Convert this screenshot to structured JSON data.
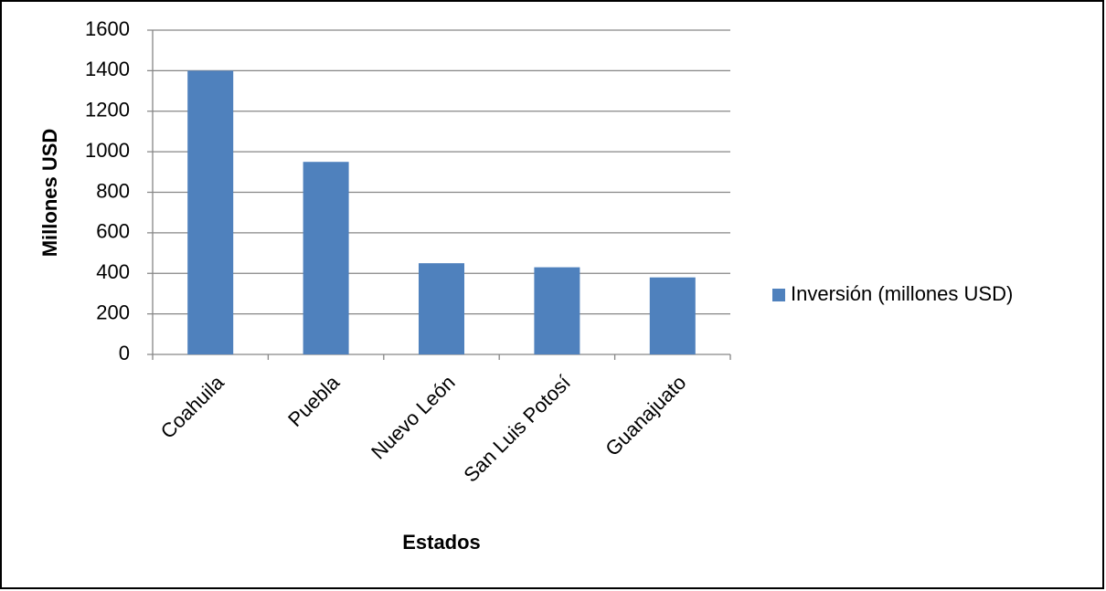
{
  "chart_data": {
    "type": "bar",
    "x_label": "Estados",
    "y_label": "Millones USD",
    "categories": [
      "Coahuila",
      "Puebla",
      "Nuevo León",
      "San Luis Potosí",
      "Guanajuato"
    ],
    "series": [
      {
        "name": "Inversión (millones USD)",
        "color": "#4f81bd",
        "values": [
          1400,
          950,
          450,
          430,
          380
        ]
      }
    ],
    "ylim": [
      0,
      1600
    ],
    "yticks": [
      0,
      200,
      400,
      600,
      800,
      1000,
      1200,
      1400,
      1600
    ],
    "grid": true,
    "legend": "right"
  }
}
